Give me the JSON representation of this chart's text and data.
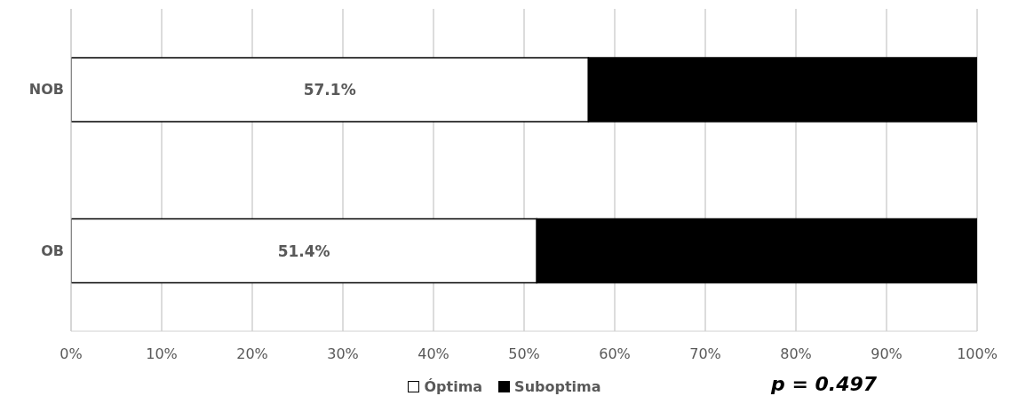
{
  "chart_data": {
    "type": "bar",
    "orientation": "horizontal",
    "stacked": true,
    "categories": [
      "NOB",
      "OB"
    ],
    "series": [
      {
        "name": "Óptima",
        "color": "#ffffff",
        "values": [
          57.1,
          51.4
        ],
        "value_labels": [
          "57.1%",
          "51.4%"
        ]
      },
      {
        "name": "Suboptima",
        "color": "#000000",
        "values": [
          42.9,
          48.6
        ]
      }
    ],
    "xlim": [
      0,
      100
    ],
    "xticks": [
      {
        "value": 0,
        "label": "0%"
      },
      {
        "value": 10,
        "label": "10%"
      },
      {
        "value": 20,
        "label": "20%"
      },
      {
        "value": 30,
        "label": "30%"
      },
      {
        "value": 40,
        "label": "40%"
      },
      {
        "value": 50,
        "label": "50%"
      },
      {
        "value": 60,
        "label": "60%"
      },
      {
        "value": 70,
        "label": "70%"
      },
      {
        "value": 80,
        "label": "80%"
      },
      {
        "value": 90,
        "label": "90%"
      },
      {
        "value": 100,
        "label": "100%"
      }
    ],
    "grid": "x",
    "legend": "bottom",
    "annotations": [
      "p = 0.497"
    ]
  }
}
